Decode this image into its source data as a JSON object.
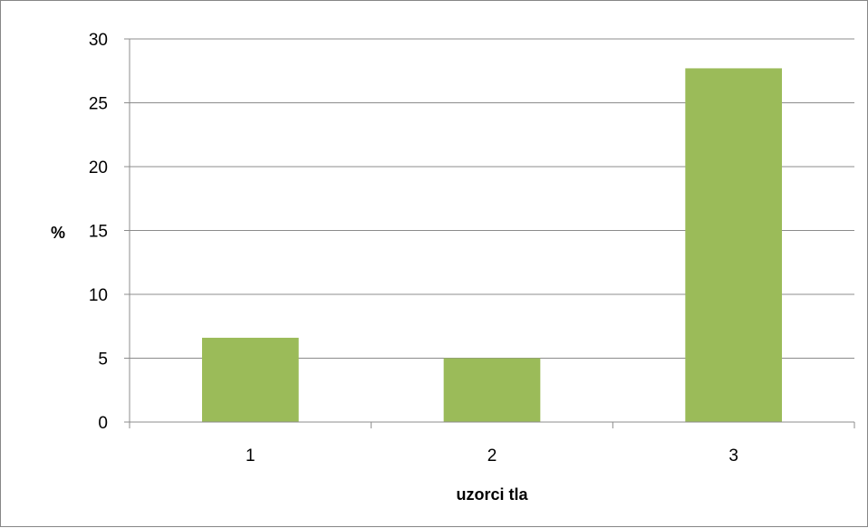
{
  "chart_data": {
    "type": "bar",
    "categories": [
      "1",
      "2",
      "3"
    ],
    "values": [
      6.6,
      5.0,
      27.7
    ],
    "xlabel": "uzorci tla",
    "ylabel": "%",
    "ylim": [
      0,
      30
    ],
    "yticks": [
      0,
      5,
      10,
      15,
      20,
      25,
      30
    ],
    "grid": true,
    "legend": "none",
    "bar_color": "#9BBB59",
    "grid_color": "#8C8C8C",
    "axis_color": "#8C8C8C"
  }
}
